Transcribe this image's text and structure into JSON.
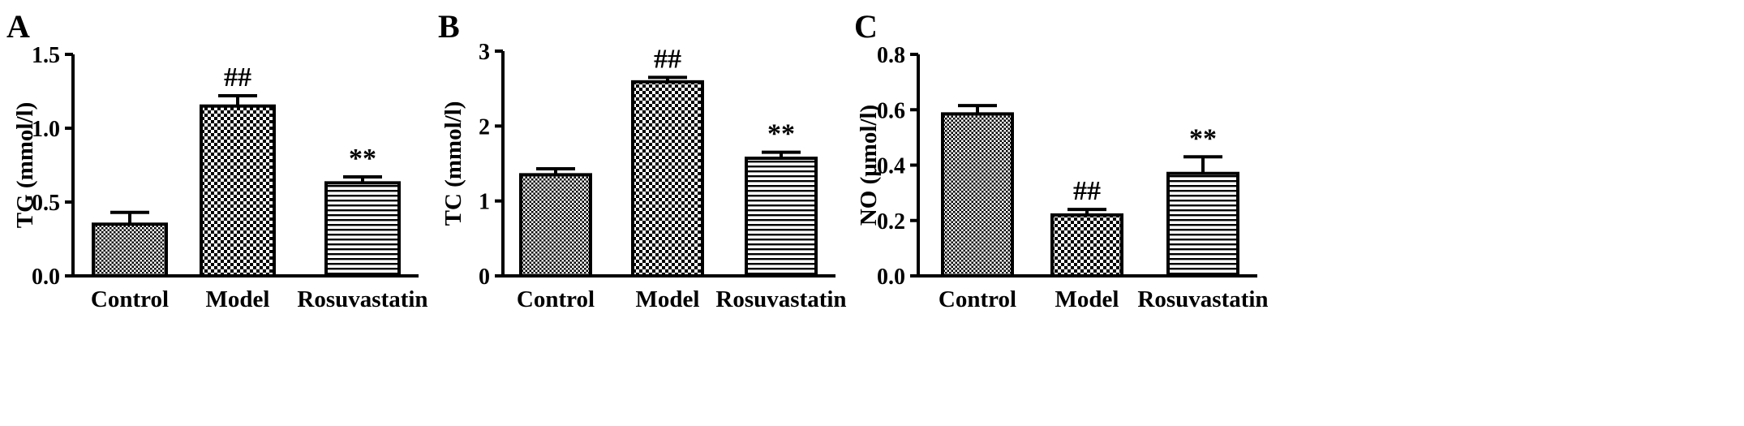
{
  "chart_data": [
    {
      "type": "bar",
      "panel_label": "A",
      "ylabel": "TG (mmol/l)",
      "categories": [
        "Control",
        "Model",
        "Rosuvastatin"
      ],
      "values": [
        0.35,
        1.15,
        0.63
      ],
      "errors": [
        0.08,
        0.07,
        0.04
      ],
      "annotations": [
        "",
        "##",
        "**"
      ],
      "patterns": [
        "fine-check",
        "coarse-check",
        "hstripe"
      ],
      "ylim": [
        0,
        1.5
      ],
      "yticks": [
        "0.0",
        "0.5",
        "1.0",
        "1.5"
      ],
      "ytick_values": [
        0,
        0.5,
        1.0,
        1.5
      ]
    },
    {
      "type": "bar",
      "panel_label": "B",
      "ylabel": "TC (mmol/l)",
      "categories": [
        "Control",
        "Model",
        "Rosuvastatin"
      ],
      "values": [
        1.35,
        2.59,
        1.57
      ],
      "errors": [
        0.08,
        0.06,
        0.08
      ],
      "annotations": [
        "",
        "##",
        "**"
      ],
      "patterns": [
        "fine-check",
        "coarse-check",
        "hstripe"
      ],
      "ylim": [
        0,
        3
      ],
      "yticks": [
        "0",
        "1",
        "2",
        "3"
      ],
      "ytick_values": [
        0,
        1,
        2,
        3
      ]
    },
    {
      "type": "bar",
      "panel_label": "C",
      "ylabel": "NO (μmol/l)",
      "categories": [
        "Control",
        "Model",
        "Rosuvastatin"
      ],
      "values": [
        0.585,
        0.22,
        0.37
      ],
      "errors": [
        0.03,
        0.02,
        0.06
      ],
      "annotations": [
        "",
        "##",
        "**"
      ],
      "patterns": [
        "fine-check",
        "coarse-check",
        "hstripe"
      ],
      "ylim": [
        0,
        0.8
      ],
      "yticks": [
        "0.0",
        "0.2",
        "0.4",
        "0.6",
        "0.8"
      ],
      "ytick_values": [
        0,
        0.2,
        0.4,
        0.6,
        0.8
      ]
    }
  ],
  "colors": {
    "ink": "#000000",
    "background": "#ffffff"
  }
}
